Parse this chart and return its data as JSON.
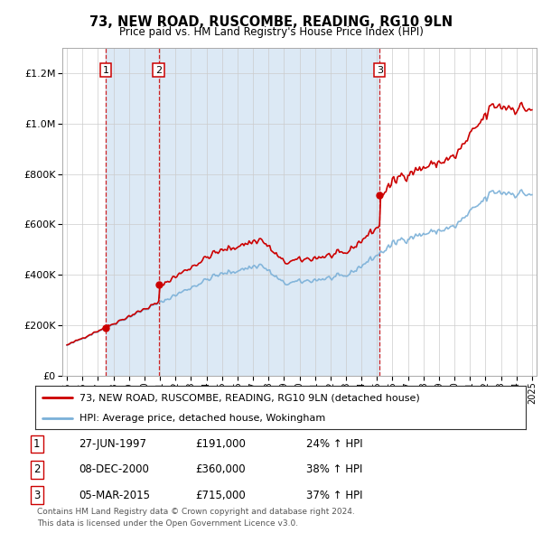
{
  "title": "73, NEW ROAD, RUSCOMBE, READING, RG10 9LN",
  "subtitle": "Price paid vs. HM Land Registry's House Price Index (HPI)",
  "legend_line1": "73, NEW ROAD, RUSCOMBE, READING, RG10 9LN (detached house)",
  "legend_line2": "HPI: Average price, detached house, Wokingham",
  "footer1": "Contains HM Land Registry data © Crown copyright and database right 2024.",
  "footer2": "This data is licensed under the Open Government Licence v3.0.",
  "sales": [
    {
      "label": "1",
      "date_num": 1997.49,
      "price": 191000,
      "date_str": "27-JUN-1997",
      "pct": "24%",
      "dir": "↑"
    },
    {
      "label": "2",
      "date_num": 2000.92,
      "price": 360000,
      "date_str": "08-DEC-2000",
      "pct": "38%",
      "dir": "↑"
    },
    {
      "label": "3",
      "date_num": 2015.17,
      "price": 715000,
      "date_str": "05-MAR-2015",
      "pct": "37%",
      "dir": "↑"
    }
  ],
  "hpi_color": "#7ab0d8",
  "price_color": "#cc0000",
  "vline_color": "#cc0000",
  "shade_color": "#dce9f5",
  "background_color": "#ffffff",
  "ylim": [
    0,
    1300000
  ],
  "xlim_start": 1994.7,
  "xlim_end": 2025.3
}
